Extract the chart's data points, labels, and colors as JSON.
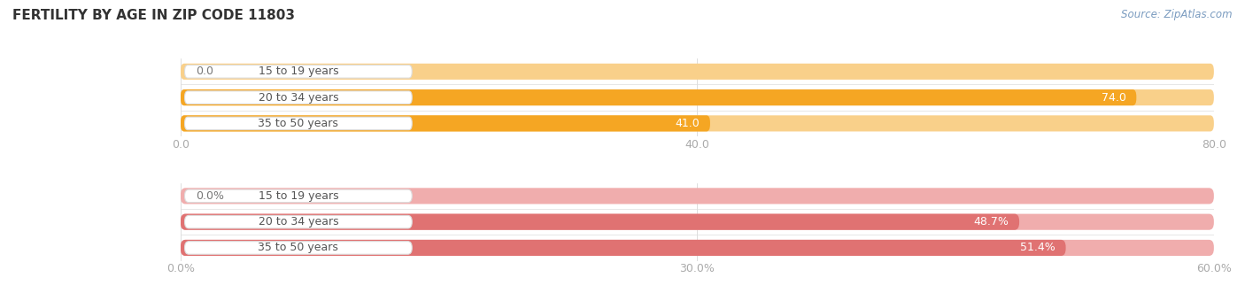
{
  "title": "FERTILITY BY AGE IN ZIP CODE 11803",
  "source": "Source: ZipAtlas.com",
  "top_chart": {
    "categories": [
      "15 to 19 years",
      "20 to 34 years",
      "35 to 50 years"
    ],
    "values": [
      0.0,
      74.0,
      41.0
    ],
    "value_labels": [
      "0.0",
      "74.0",
      "41.0"
    ],
    "xlim": [
      0.0,
      80.0
    ],
    "xticks": [
      0.0,
      40.0,
      80.0
    ],
    "xtick_labels": [
      "0.0",
      "40.0",
      "80.0"
    ],
    "bar_color_full": "#F5A623",
    "bar_color_light": "#F9D08A",
    "bg_color": "#EFEFEF"
  },
  "bottom_chart": {
    "categories": [
      "15 to 19 years",
      "20 to 34 years",
      "35 to 50 years"
    ],
    "values": [
      0.0,
      48.7,
      51.4
    ],
    "value_labels": [
      "0.0%",
      "48.7%",
      "51.4%"
    ],
    "xlim": [
      0.0,
      60.0
    ],
    "xticks": [
      0.0,
      30.0,
      60.0
    ],
    "xtick_labels": [
      "0.0%",
      "30.0%",
      "60.0%"
    ],
    "bar_color_full": "#E07272",
    "bar_color_light": "#F0ADAD",
    "bg_color": "#EFEFEF"
  },
  "label_fontsize": 9,
  "title_fontsize": 11,
  "source_fontsize": 8.5,
  "bar_height": 0.62,
  "value_color_inside": "#ffffff",
  "value_color_outside": "#777777",
  "category_label_color": "#555555",
  "axis_label_color": "#aaaaaa",
  "fig_bg": "#ffffff",
  "pill_bg": "#ffffff",
  "pill_border": "#dddddd",
  "separator_color": "#dddddd"
}
